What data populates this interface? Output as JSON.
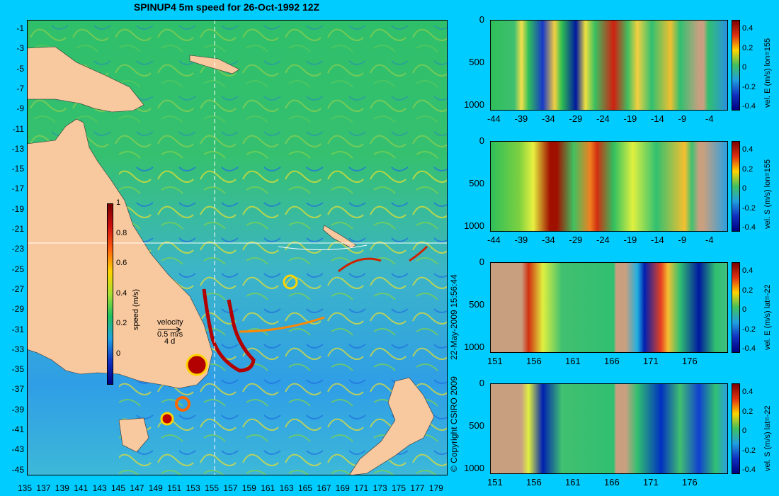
{
  "title": "SPINUP4 5m speed for 26-Oct-1992 12Z",
  "copyright": "© Copyright CSIRO 2009",
  "timestamp": "22-May-2009 15:56:44",
  "map": {
    "lat_ticks": [
      "-1",
      "-3",
      "-5",
      "-7",
      "-9",
      "-11",
      "-13",
      "-15",
      "-17",
      "-19",
      "-21",
      "-23",
      "-25",
      "-27",
      "-29",
      "-31",
      "-33",
      "-35",
      "-37",
      "-39",
      "-41",
      "-43",
      "-45"
    ],
    "lon_ticks": [
      "135",
      "137",
      "139",
      "141",
      "143",
      "145",
      "147",
      "149",
      "151",
      "153",
      "155",
      "157",
      "159",
      "161",
      "163",
      "165",
      "167",
      "169",
      "171",
      "173",
      "175",
      "177",
      "179"
    ],
    "colorbar": {
      "label": "speed (m/s)",
      "ticks": [
        "1",
        "0.8",
        "0.6",
        "0.4",
        "0.2",
        "0"
      ]
    },
    "velocity_legend": {
      "title": "velocity",
      "speed": "0.5 m/s",
      "duration": "4 d"
    },
    "section_lines": {
      "lon": 155,
      "lat": -22
    }
  },
  "chart_data": [
    {
      "type": "heatmap",
      "title": "vel. E (m/s) lon=155",
      "x_ticks": [
        "-44",
        "-39",
        "-34",
        "-29",
        "-24",
        "-19",
        "-14",
        "-9",
        "-4"
      ],
      "y_ticks": [
        "0",
        "500",
        "1000"
      ],
      "colorbar_ticks": [
        "0.4",
        "0.2",
        "0",
        "-0.2",
        "-0.4"
      ],
      "clim": [
        -0.4,
        0.4
      ]
    },
    {
      "type": "heatmap",
      "title": "vel. S (m/s) lon=155",
      "x_ticks": [
        "-44",
        "-39",
        "-34",
        "-29",
        "-24",
        "-19",
        "-14",
        "-9",
        "-4"
      ],
      "y_ticks": [
        "0",
        "500",
        "1000"
      ],
      "colorbar_ticks": [
        "0.4",
        "0.2",
        "0",
        "-0.2",
        "-0.4"
      ],
      "clim": [
        -0.4,
        0.4
      ]
    },
    {
      "type": "heatmap",
      "title": "vel. E (m/s) lat=-22",
      "x_ticks": [
        "151",
        "156",
        "161",
        "166",
        "171",
        "176"
      ],
      "y_ticks": [
        "0",
        "500",
        "1000"
      ],
      "colorbar_ticks": [
        "0.4",
        "0.2",
        "0",
        "-0.2",
        "-0.4"
      ],
      "clim": [
        -0.4,
        0.4
      ]
    },
    {
      "type": "heatmap",
      "title": "vel. S (m/s) lat=-22",
      "x_ticks": [
        "151",
        "156",
        "161",
        "166",
        "171",
        "176"
      ],
      "y_ticks": [
        "0",
        "500",
        "1000"
      ],
      "colorbar_ticks": [
        "0.4",
        "0.2",
        "0",
        "-0.2",
        "-0.4"
      ],
      "clim": [
        -0.4,
        0.4
      ]
    }
  ]
}
